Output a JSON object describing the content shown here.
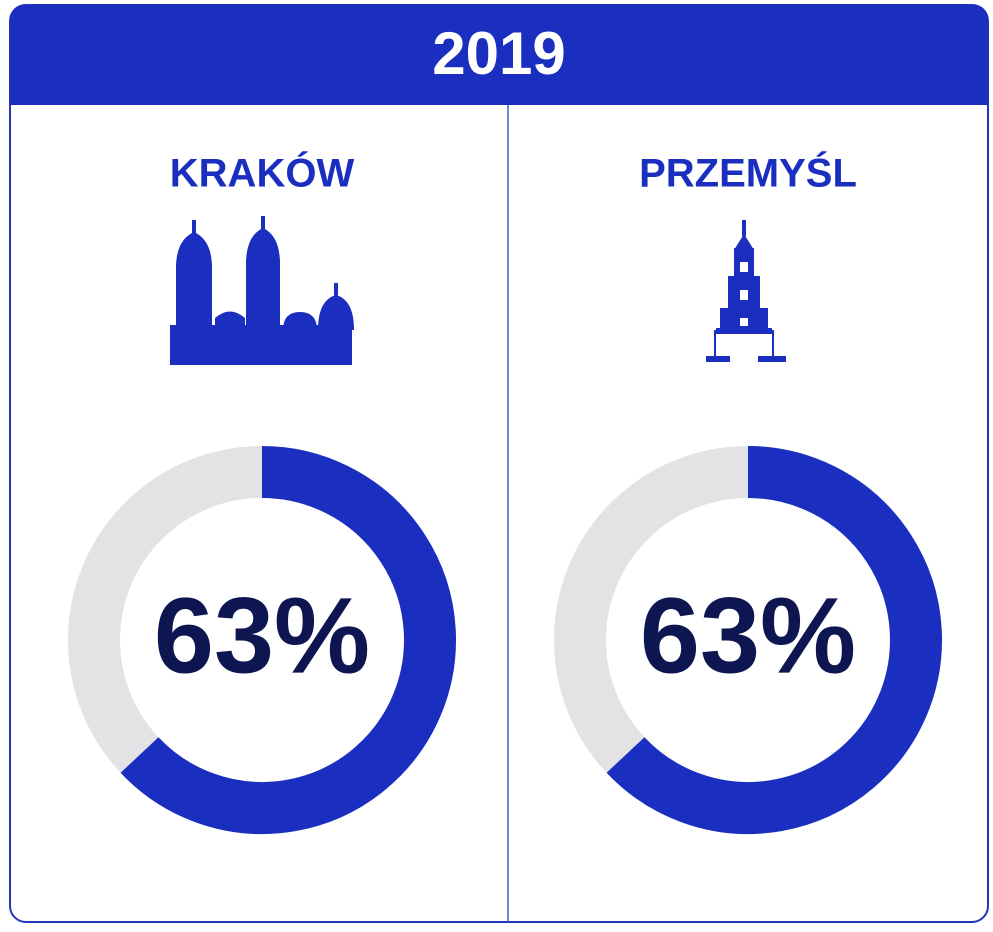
{
  "header": {
    "title": "2019"
  },
  "chart_data": [
    {
      "type": "donut",
      "title": "KRAKÓW",
      "values": [
        63
      ],
      "value_labels": [
        "63%"
      ],
      "color": "#1a2fbf",
      "track_color": "#e3e3e5"
    },
    {
      "type": "donut",
      "title": "PRZEMYŚL",
      "values": [
        63
      ],
      "value_labels": [
        "63%"
      ],
      "color": "#1a2fbf",
      "track_color": "#e3e3e5"
    }
  ]
}
